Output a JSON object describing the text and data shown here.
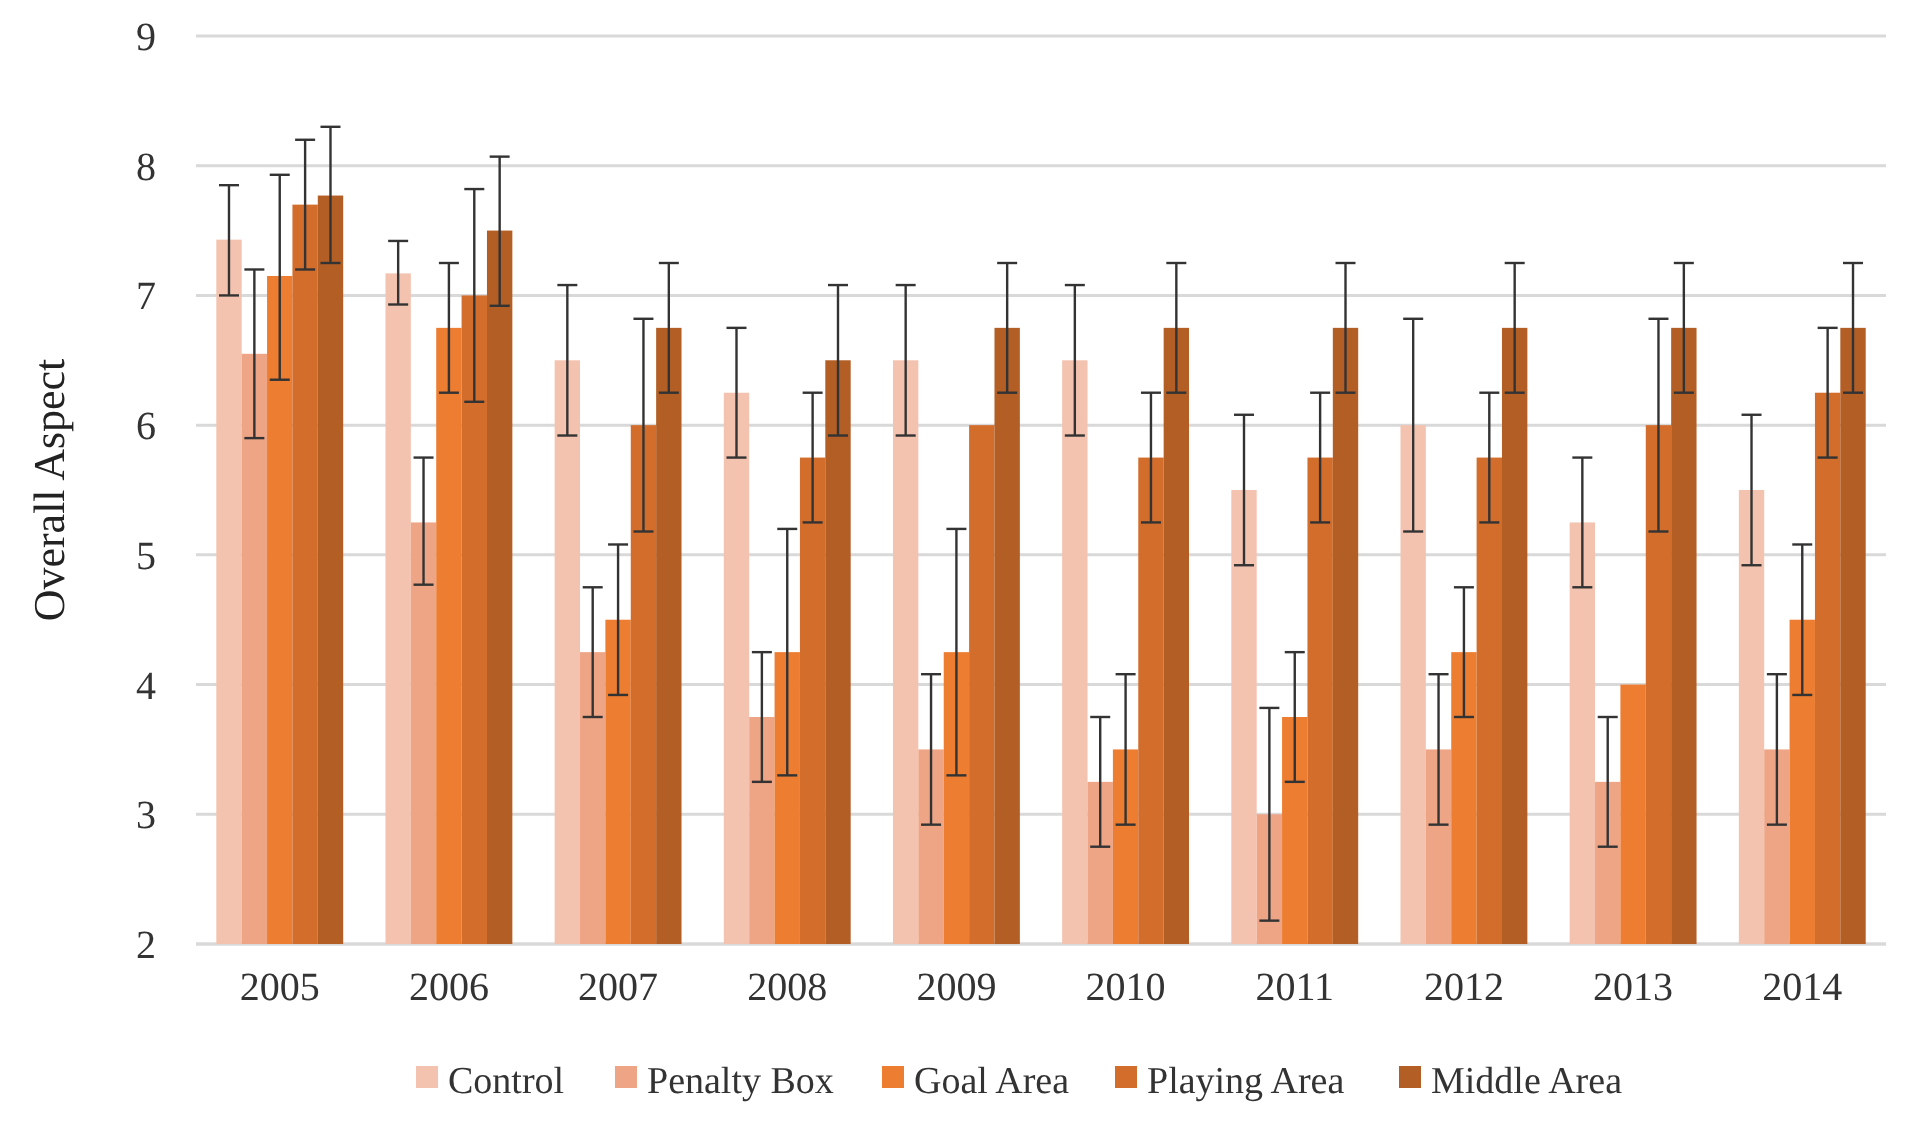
{
  "chart_data": {
    "type": "bar",
    "ylabel": "Overall Aspect",
    "categories": [
      "2005",
      "2006",
      "2007",
      "2008",
      "2009",
      "2010",
      "2011",
      "2012",
      "2013",
      "2014"
    ],
    "series": [
      {
        "name": "Control",
        "color": "#f4c3b0",
        "values": [
          7.43,
          7.17,
          6.5,
          6.25,
          6.5,
          6.5,
          5.5,
          6.0,
          5.25,
          5.5
        ],
        "errors": [
          [
            7.0,
            7.85
          ],
          [
            6.93,
            7.42
          ],
          [
            5.92,
            7.08
          ],
          [
            5.75,
            6.75
          ],
          [
            5.92,
            7.08
          ],
          [
            5.92,
            7.08
          ],
          [
            4.92,
            6.08
          ],
          [
            5.18,
            6.82
          ],
          [
            4.75,
            5.75
          ],
          [
            4.92,
            6.08
          ]
        ]
      },
      {
        "name": "Penalty Box",
        "color": "#eea586",
        "values": [
          6.55,
          5.25,
          4.25,
          3.75,
          3.5,
          3.25,
          3.0,
          3.5,
          3.25,
          3.5
        ],
        "errors": [
          [
            5.9,
            7.2
          ],
          [
            4.77,
            5.75
          ],
          [
            3.75,
            4.75
          ],
          [
            3.25,
            4.25
          ],
          [
            2.92,
            4.08
          ],
          [
            2.75,
            3.75
          ],
          [
            2.18,
            3.82
          ],
          [
            2.92,
            4.08
          ],
          [
            2.75,
            3.75
          ],
          [
            2.92,
            4.08
          ]
        ]
      },
      {
        "name": "Goal Area",
        "color": "#ed7d31",
        "values": [
          7.15,
          6.75,
          4.5,
          4.25,
          4.25,
          3.5,
          3.75,
          4.25,
          4.0,
          4.5
        ],
        "errors": [
          [
            6.35,
            7.93
          ],
          [
            6.25,
            7.25
          ],
          [
            3.92,
            5.08
          ],
          [
            3.3,
            5.2
          ],
          [
            3.3,
            5.2
          ],
          [
            2.92,
            4.08
          ],
          [
            3.25,
            4.25
          ],
          [
            3.75,
            4.75
          ],
          null,
          [
            3.92,
            5.08
          ]
        ]
      },
      {
        "name": "Playing Area",
        "color": "#d36d2c",
        "values": [
          7.7,
          7.0,
          6.0,
          5.75,
          6.0,
          5.75,
          5.75,
          5.75,
          6.0,
          6.25
        ],
        "errors": [
          [
            7.2,
            8.2
          ],
          [
            6.18,
            7.82
          ],
          [
            5.18,
            6.82
          ],
          [
            5.25,
            6.25
          ],
          null,
          [
            5.25,
            6.25
          ],
          [
            5.25,
            6.25
          ],
          [
            5.25,
            6.25
          ],
          [
            5.18,
            6.82
          ],
          [
            5.75,
            6.75
          ]
        ]
      },
      {
        "name": "Middle Area",
        "color": "#b25e25",
        "values": [
          7.77,
          7.5,
          6.75,
          6.5,
          6.75,
          6.75,
          6.75,
          6.75,
          6.75,
          6.75
        ],
        "errors": [
          [
            7.25,
            8.3
          ],
          [
            6.92,
            8.07
          ],
          [
            6.25,
            7.25
          ],
          [
            5.92,
            7.08
          ],
          [
            6.25,
            7.25
          ],
          [
            6.25,
            7.25
          ],
          [
            6.25,
            7.25
          ],
          [
            6.25,
            7.25
          ],
          [
            6.25,
            7.25
          ],
          [
            6.25,
            7.25
          ]
        ]
      }
    ],
    "ylim": [
      2,
      9
    ],
    "yticks": [
      2,
      3,
      4,
      5,
      6,
      7,
      8,
      9
    ],
    "grid": "y",
    "legend": "bottom"
  }
}
